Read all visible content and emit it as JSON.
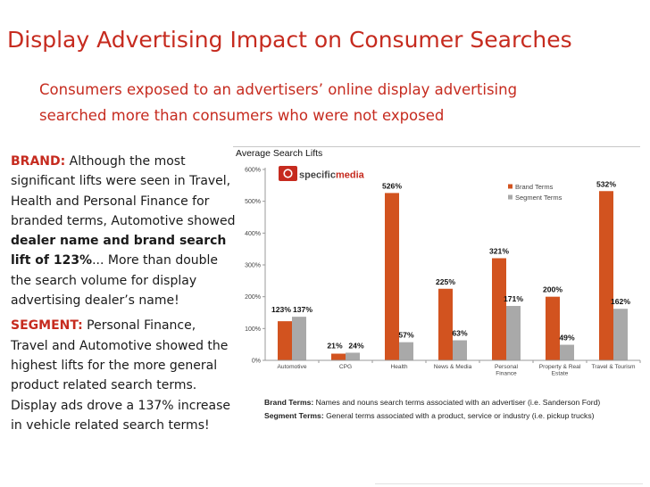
{
  "slide": {
    "title": "Display Advertising Impact on Consumer Searches",
    "subtitle_line1": "Consumers exposed to an advertisers’ online display advertising",
    "subtitle_line2": "searched more than consumers who were not exposed"
  },
  "brand_paragraph": {
    "label": "BRAND:",
    "text1": " Although the most significant lifts were seen in Travel, Health and Personal Finance for branded terms, Automotive showed ",
    "bold": "dealer name and brand search lift of 123%",
    "text2": "... More than double the search volume for display advertising dealer’s name!"
  },
  "segment_paragraph": {
    "label": "SEGMENT:",
    "text": " Personal Finance, Travel and Automotive showed the highest lifts for the more general product related search terms.  Display ads drove a 137% increase in vehicle related search terms!"
  },
  "footnote": {
    "brand_label": "Brand Terms:",
    "brand_text": " Names and nouns search terms associated with an advertiser (i.e. Sanderson Ford)",
    "segment_label": "Segment Terms:",
    "segment_text": " General terms associated with a product, service or industry (i.e. pickup trucks)"
  },
  "logo": {
    "text_left": "specific",
    "text_right": "media"
  },
  "colors": {
    "accent": "#c62b1f",
    "brand": "#d2531f",
    "segment": "#a9a9a9"
  },
  "chart_data": {
    "type": "bar",
    "title": "Average Search Lifts",
    "categories": [
      "Automotive",
      "CPG",
      "Health",
      "News & Media",
      "Personal Finance",
      "Property & Real Estate",
      "Travel & Tourism"
    ],
    "category_lines": [
      [
        "Automotive"
      ],
      [
        "CPG"
      ],
      [
        "Health"
      ],
      [
        "News & Media"
      ],
      [
        "Personal",
        "Finance"
      ],
      [
        "Property & Real",
        "Estate"
      ],
      [
        "Travel & Tourism"
      ]
    ],
    "series": [
      {
        "name": "Brand Terms",
        "values": [
          123,
          21,
          526,
          225,
          321,
          200,
          532
        ],
        "labels": [
          "123%",
          "21%",
          "526%",
          "225%",
          "321%",
          "200%",
          "532%"
        ]
      },
      {
        "name": "Segment Terms",
        "values": [
          137,
          24,
          57,
          63,
          171,
          49,
          162
        ],
        "labels": [
          "137%",
          "24%",
          "57%",
          "63%",
          "171%",
          "49%",
          "162%"
        ]
      }
    ],
    "yticks": [
      "0%",
      "100%",
      "200%",
      "300%",
      "400%",
      "500%",
      "600%"
    ],
    "ylim": [
      0,
      600
    ],
    "legend": "right",
    "grid": false
  }
}
